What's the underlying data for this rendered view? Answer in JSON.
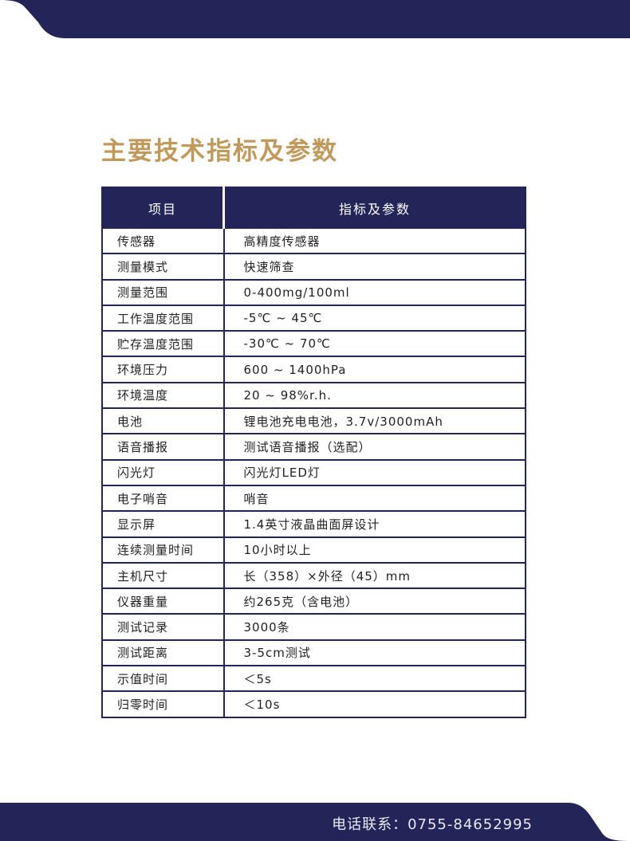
{
  "colors": {
    "navy": "#232558",
    "gold": "#c19a5b"
  },
  "title": "主要技术指标及参数",
  "table": {
    "headers": [
      "项目",
      "指标及参数"
    ],
    "rows": [
      [
        "传感器",
        "高精度传感器"
      ],
      [
        "测量模式",
        "快速筛查"
      ],
      [
        "测量范围",
        "0-400mg/100ml"
      ],
      [
        "工作温度范围",
        "-5℃ ~ 45℃"
      ],
      [
        "贮存温度范围",
        "-30℃ ~ 70℃"
      ],
      [
        "环境压力",
        "600 ~ 1400hPa"
      ],
      [
        "环境温度",
        "20 ~ 98%r.h."
      ],
      [
        "电池",
        "锂电池充电电池，3.7v/3000mAh"
      ],
      [
        "语音播报",
        "测试语音播报（选配）"
      ],
      [
        "闪光灯",
        "闪光灯LED灯"
      ],
      [
        "电子哨音",
        "哨音"
      ],
      [
        "显示屏",
        "1.4英寸液晶曲面屏设计"
      ],
      [
        "连续测量时间",
        "10小时以上"
      ],
      [
        "主机尺寸",
        "长（358）×外径（45）mm"
      ],
      [
        "仪器重量",
        "约265克（含电池）"
      ],
      [
        "测试记录",
        "3000条"
      ],
      [
        "测试距离",
        "3-5cm测试"
      ],
      [
        "示值时间",
        "＜5s"
      ],
      [
        "归零时间",
        "＜10s"
      ]
    ]
  },
  "footer": {
    "phone": "电话联系：0755-84652995"
  }
}
